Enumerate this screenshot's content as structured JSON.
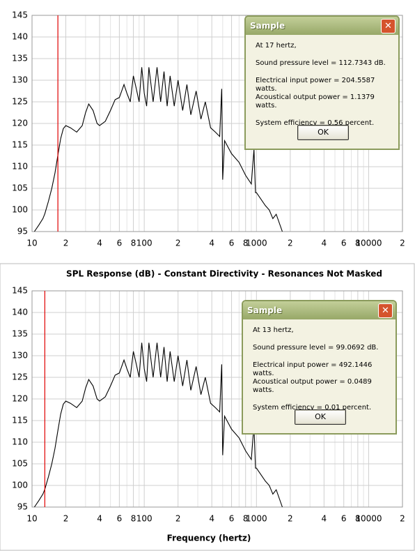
{
  "chart_data": [
    {
      "type": "line",
      "x": [
        10.5,
        11.5,
        12.5,
        13,
        14,
        15,
        16,
        17,
        18,
        19,
        20,
        22,
        25,
        28,
        30,
        32,
        35,
        38,
        40,
        45,
        50,
        55,
        60,
        66,
        70,
        75,
        80,
        85,
        90,
        95,
        100,
        105,
        110,
        120,
        130,
        140,
        150,
        160,
        170,
        185,
        200,
        220,
        240,
        260,
        290,
        320,
        350,
        390,
        430,
        470,
        490,
        500,
        520,
        600,
        700,
        800,
        900,
        950,
        980,
        1000,
        1200,
        1300,
        1400,
        1500,
        1700
      ],
      "values": [
        95,
        96.5,
        98,
        99.1,
        102,
        105,
        108.5,
        112.7,
        116.5,
        118.8,
        119.5,
        119,
        118,
        119.5,
        122.5,
        124.5,
        123,
        120,
        119.5,
        120.5,
        123,
        125.5,
        126,
        129,
        127,
        125,
        131,
        128,
        125,
        133,
        127,
        124,
        133,
        125,
        133,
        125,
        132,
        124,
        131,
        124,
        130,
        123,
        129,
        122,
        127.5,
        121,
        125,
        119,
        118,
        117,
        128,
        107,
        116,
        113,
        111,
        108,
        106,
        114,
        104,
        104,
        101,
        100,
        98,
        99,
        95
      ],
      "color": "#000000",
      "cursor": {
        "x": 17,
        "color": "#e00000"
      },
      "xlim": [
        10,
        20000
      ],
      "ylim": [
        95,
        145
      ],
      "log_x": true,
      "grid": true,
      "yticks": [
        95,
        100,
        105,
        110,
        115,
        120,
        125,
        130,
        135,
        140,
        145
      ],
      "xticks": [
        10,
        {
          "value": 20,
          "label": "2"
        },
        {
          "value": 40,
          "label": "4"
        },
        {
          "value": 60,
          "label": "6"
        },
        {
          "value": 80,
          "label": "8"
        },
        100,
        {
          "value": 200,
          "label": "2"
        },
        {
          "value": 400,
          "label": "4"
        },
        {
          "value": 600,
          "label": "6"
        },
        {
          "value": 800,
          "label": "8"
        },
        1000,
        {
          "value": 2000,
          "label": "2"
        },
        {
          "value": 4000,
          "label": "4"
        },
        {
          "value": 6000,
          "label": "6"
        },
        {
          "value": 8000,
          "label": "8"
        },
        10000,
        {
          "value": 20000,
          "label": "2"
        }
      ],
      "minor_xticks": [
        30,
        50,
        70,
        90,
        300,
        500,
        700,
        900,
        3000,
        5000,
        7000,
        9000
      ]
    },
    {
      "type": "line",
      "title": "SPL Response (dB) - Constant Directivity - Resonances Not Masked",
      "xlabel": "Frequency (hertz)",
      "x": [
        10.5,
        11.5,
        12.5,
        13,
        14,
        15,
        16,
        17,
        18,
        19,
        20,
        22,
        25,
        28,
        30,
        32,
        35,
        38,
        40,
        45,
        50,
        55,
        60,
        66,
        70,
        75,
        80,
        85,
        90,
        95,
        100,
        105,
        110,
        120,
        130,
        140,
        150,
        160,
        170,
        185,
        200,
        220,
        240,
        260,
        290,
        320,
        350,
        390,
        430,
        470,
        490,
        500,
        520,
        600,
        700,
        800,
        900,
        950,
        980,
        1000,
        1200,
        1300,
        1400,
        1500,
        1700
      ],
      "values": [
        95,
        96.5,
        98,
        99.1,
        102,
        105,
        108.5,
        112.7,
        116.5,
        118.8,
        119.5,
        119,
        118,
        119.5,
        122.5,
        124.5,
        123,
        120,
        119.5,
        120.5,
        123,
        125.5,
        126,
        129,
        127,
        125,
        131,
        128,
        125,
        133,
        127,
        124,
        133,
        125,
        133,
        125,
        132,
        124,
        131,
        124,
        130,
        123,
        129,
        122,
        127.5,
        121,
        125,
        119,
        118,
        117,
        128,
        107,
        116,
        113,
        111,
        108,
        106,
        114,
        104,
        104,
        101,
        100,
        98,
        99,
        95
      ],
      "color": "#000000",
      "cursor": {
        "x": 13,
        "color": "#e00000"
      },
      "xlim": [
        10,
        20000
      ],
      "ylim": [
        95,
        145
      ],
      "log_x": true,
      "grid": true,
      "yticks": [
        95,
        100,
        105,
        110,
        115,
        120,
        125,
        130,
        135,
        140,
        145
      ],
      "xticks": [
        10,
        {
          "value": 20,
          "label": "2"
        },
        {
          "value": 40,
          "label": "4"
        },
        {
          "value": 60,
          "label": "6"
        },
        {
          "value": 80,
          "label": "8"
        },
        100,
        {
          "value": 200,
          "label": "2"
        },
        {
          "value": 400,
          "label": "4"
        },
        {
          "value": 600,
          "label": "6"
        },
        {
          "value": 800,
          "label": "8"
        },
        1000,
        {
          "value": 2000,
          "label": "2"
        },
        {
          "value": 4000,
          "label": "4"
        },
        {
          "value": 6000,
          "label": "6"
        },
        {
          "value": 8000,
          "label": "8"
        },
        10000,
        {
          "value": 20000,
          "label": "2"
        }
      ],
      "minor_xticks": [
        30,
        50,
        70,
        90,
        300,
        500,
        700,
        900,
        3000,
        5000,
        7000,
        9000
      ]
    }
  ],
  "dialogs": [
    {
      "title": "Sample",
      "button": "OK",
      "paragraphs": [
        [
          "At 17 hertz,"
        ],
        [
          "Sound pressure level = 112.7343 dB."
        ],
        [
          "Electrical input power = 204.5587 watts.",
          "Acoustical output power = 1.1379 watts."
        ],
        [
          "System efficiency = 0.56 percent."
        ]
      ]
    },
    {
      "title": "Sample",
      "button": "OK",
      "paragraphs": [
        [
          "At 13 hertz,"
        ],
        [
          "Sound pressure level = 99.0692 dB."
        ],
        [
          "Electrical input power = 492.1446 watts.",
          "Acoustical output power = 0.0489 watts."
        ],
        [
          "System efficiency = 0.01 percent."
        ]
      ]
    }
  ]
}
